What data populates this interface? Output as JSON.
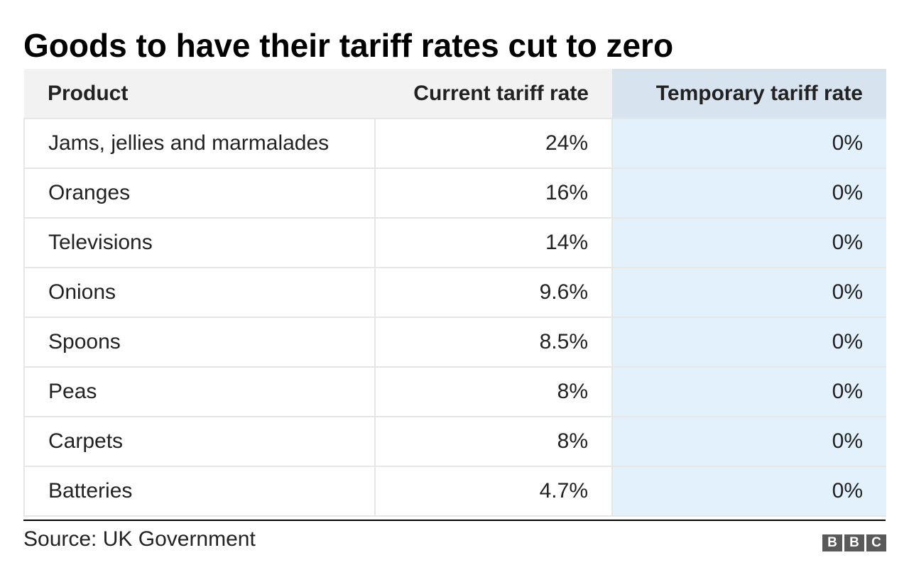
{
  "title": "Goods to have their tariff rates cut to zero",
  "source": "Source: UK Government",
  "logo": {
    "letters": [
      "B",
      "B",
      "C"
    ]
  },
  "colors": {
    "header_bg": "#f2f2f2",
    "highlight_header_bg": "#d7e4f0",
    "highlight_column_bg": "#e3f1fd",
    "logo_bg": "#5a5a5a"
  },
  "chart_data": {
    "type": "table",
    "title": "Goods to have their tariff rates cut to zero",
    "columns": [
      "Product",
      "Current tariff rate",
      "Temporary tariff rate"
    ],
    "rows": [
      [
        "Jams, jellies and marmalades",
        "24%",
        "0%"
      ],
      [
        "Oranges",
        "16%",
        "0%"
      ],
      [
        "Televisions",
        "14%",
        "0%"
      ],
      [
        "Onions",
        "9.6%",
        "0%"
      ],
      [
        "Spoons",
        "8.5%",
        "0%"
      ],
      [
        "Peas",
        "8%",
        "0%"
      ],
      [
        "Carpets",
        "8%",
        "0%"
      ],
      [
        "Batteries",
        "4.7%",
        "0%"
      ]
    ],
    "source": "Source: UK Government"
  }
}
